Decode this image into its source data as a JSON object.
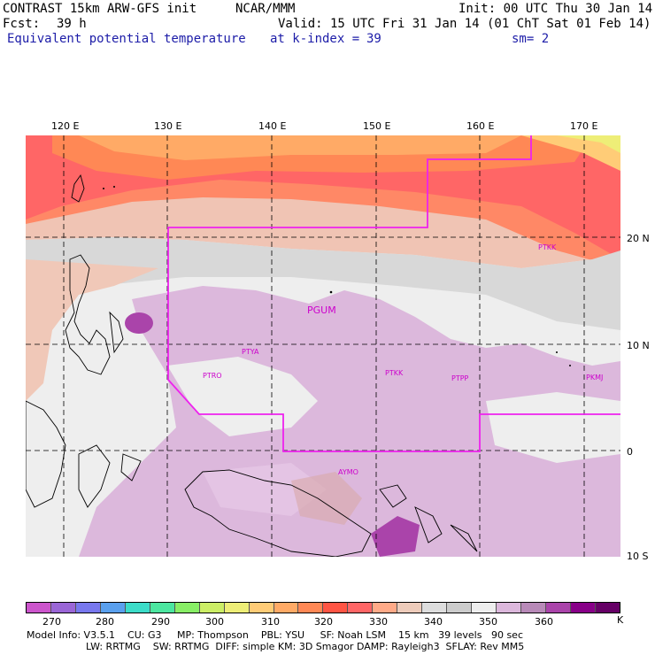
{
  "header": {
    "model": "CONTRAST 15km ARW-GFS init",
    "org": "NCAR/MMM",
    "init": "Init: 00 UTC Thu 30 Jan 14",
    "fcst_label": "Fcst:",
    "fcst_value": "39 h",
    "valid": "Valid: 15 UTC Fri 31 Jan 14 (01 ChT Sat 01 Feb 14)",
    "field": "Equivalent potential temperature",
    "level": "at k-index =",
    "level_value": "39",
    "smoothing": "sm= 2"
  },
  "map": {
    "longitude_labels": [
      "120 E",
      "130 E",
      "140 E",
      "150 E",
      "160 E",
      "170 E"
    ],
    "latitude_labels": [
      "20 N",
      "10 N",
      "0",
      "10 S"
    ],
    "stations": [
      "PTKK",
      "PGUM",
      "PTYA",
      "PTRO",
      "PTKK",
      "PTPP",
      "PKMJ",
      "AYMO"
    ],
    "boundary_color": "#ee22ee"
  },
  "colorbar": {
    "colors": [
      "#cc55cc",
      "#9a66d6",
      "#7878ee",
      "#5aa0ee",
      "#3cdcc8",
      "#4ce6a0",
      "#88ee66",
      "#ccee66",
      "#eeee77",
      "#ffcc77",
      "#ffaa66",
      "#ff8855",
      "#ff5544",
      "#ff6666",
      "#ffaa88",
      "#eeccbb",
      "#dddddd",
      "#cccccc",
      "#eeeeee",
      "#dcb8dc",
      "#b88ab8",
      "#aa44aa",
      "#880088",
      "#660066"
    ],
    "tick_labels": [
      "270",
      "280",
      "290",
      "300",
      "310",
      "320",
      "330",
      "340",
      "350",
      "360",
      "K"
    ]
  },
  "footer": {
    "line1": "Model Info: V3.5.1    CU: G3     MP: Thompson    PBL: YSU     SF: Noah LSM    15 km   39 levels   90 sec",
    "line2": "LW: RRTMG    SW: RRTMG  DIFF: simple KM: 3D Smagor DAMP: Rayleigh3  SFLAY: Rev MM5"
  }
}
